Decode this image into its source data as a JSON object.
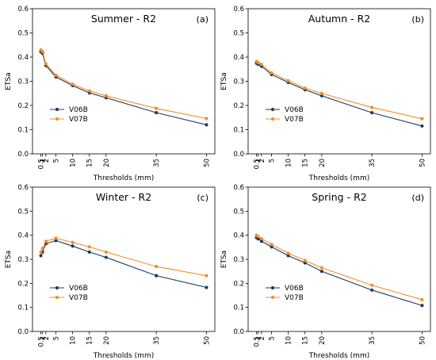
{
  "chart_data": [
    {
      "type": "line",
      "title": "Summer - R2",
      "panel_label": "(a)",
      "xlabel": "Thresholds (mm)",
      "ylabel": "ETSa",
      "x": [
        0.5,
        1,
        2,
        5,
        10,
        15,
        20,
        35,
        50
      ],
      "x_ticks": [
        "0.5",
        "1",
        "2",
        "5",
        "10",
        "15",
        "20",
        "35",
        "50"
      ],
      "xlim": [
        -2,
        52.5
      ],
      "ylim": [
        0,
        0.6
      ],
      "y_ticks": [
        "0.0",
        "0.1",
        "0.2",
        "0.3",
        "0.4",
        "0.5",
        "0.6"
      ],
      "legend_position": "lower-left",
      "series": [
        {
          "name": "V06B",
          "color": "#1f3a5f",
          "values": [
            0.422,
            0.415,
            0.365,
            0.318,
            0.282,
            0.252,
            0.232,
            0.17,
            0.12
          ]
        },
        {
          "name": "V07B",
          "color": "#f28e2b",
          "values": [
            0.43,
            0.423,
            0.372,
            0.325,
            0.288,
            0.26,
            0.24,
            0.188,
            0.146
          ]
        }
      ]
    },
    {
      "type": "line",
      "title": "Autumn - R2",
      "panel_label": "(b)",
      "xlabel": "Thresholds (mm)",
      "ylabel": "ETSa",
      "x": [
        0.5,
        1,
        2,
        5,
        10,
        15,
        20,
        35,
        50
      ],
      "x_ticks": [
        "0.5",
        "1",
        "2",
        "5",
        "10",
        "15",
        "20",
        "35",
        "50"
      ],
      "xlim": [
        -2,
        52.5
      ],
      "ylim": [
        0,
        0.6
      ],
      "y_ticks": [
        "0.0",
        "0.1",
        "0.2",
        "0.3",
        "0.4",
        "0.5",
        "0.6"
      ],
      "legend_position": "lower-left",
      "series": [
        {
          "name": "V06B",
          "color": "#1f3a5f",
          "values": [
            0.375,
            0.37,
            0.362,
            0.328,
            0.295,
            0.265,
            0.24,
            0.17,
            0.115
          ]
        },
        {
          "name": "V07B",
          "color": "#f28e2b",
          "values": [
            0.382,
            0.377,
            0.37,
            0.335,
            0.302,
            0.272,
            0.25,
            0.192,
            0.145
          ]
        }
      ]
    },
    {
      "type": "line",
      "title": "Winter - R2",
      "panel_label": "(c)",
      "xlabel": "Thresholds (mm)",
      "ylabel": "ETSa",
      "x": [
        0.5,
        1,
        2,
        5,
        10,
        15,
        20,
        35,
        50
      ],
      "x_ticks": [
        "0.5",
        "1",
        "2",
        "5",
        "10",
        "15",
        "20",
        "35",
        "50"
      ],
      "xlim": [
        -2,
        52.5
      ],
      "ylim": [
        0,
        0.6
      ],
      "y_ticks": [
        "0.0",
        "0.1",
        "0.2",
        "0.3",
        "0.4",
        "0.5",
        "0.6"
      ],
      "legend_position": "lower-left",
      "series": [
        {
          "name": "V06B",
          "color": "#1f3a5f",
          "values": [
            0.315,
            0.33,
            0.365,
            0.378,
            0.355,
            0.33,
            0.308,
            0.232,
            0.183
          ]
        },
        {
          "name": "V07B",
          "color": "#f28e2b",
          "values": [
            0.33,
            0.345,
            0.375,
            0.388,
            0.37,
            0.352,
            0.33,
            0.27,
            0.232
          ]
        }
      ]
    },
    {
      "type": "line",
      "title": "Spring - R2",
      "panel_label": "(d)",
      "xlabel": "Thresholds (mm)",
      "ylabel": "ETSa",
      "x": [
        0.5,
        1,
        2,
        5,
        10,
        15,
        20,
        35,
        50
      ],
      "x_ticks": [
        "0.5",
        "1",
        "2",
        "5",
        "10",
        "15",
        "20",
        "35",
        "50"
      ],
      "xlim": [
        -2,
        52.5
      ],
      "ylim": [
        0,
        0.6
      ],
      "y_ticks": [
        "0.0",
        "0.1",
        "0.2",
        "0.3",
        "0.4",
        "0.5",
        "0.6"
      ],
      "legend_position": "lower-left",
      "series": [
        {
          "name": "V06B",
          "color": "#1f3a5f",
          "values": [
            0.39,
            0.385,
            0.375,
            0.352,
            0.315,
            0.285,
            0.25,
            0.172,
            0.108
          ]
        },
        {
          "name": "V07B",
          "color": "#f28e2b",
          "values": [
            0.4,
            0.395,
            0.386,
            0.362,
            0.325,
            0.295,
            0.265,
            0.192,
            0.132
          ]
        }
      ]
    }
  ]
}
